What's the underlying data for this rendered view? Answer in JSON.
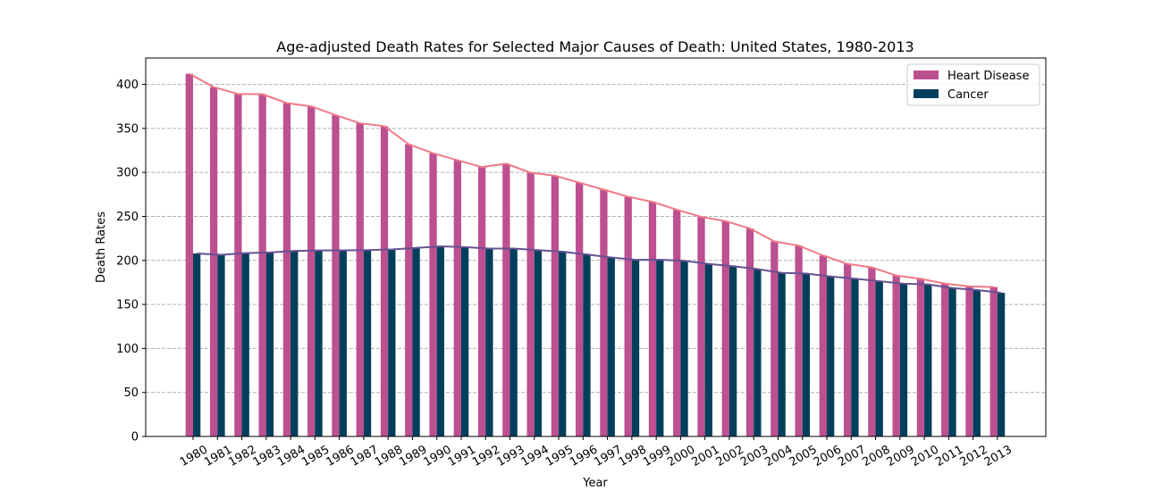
{
  "chart_data": {
    "type": "bar",
    "title": "Age-adjusted Death Rates for Selected Major Causes of Death: United States, 1980-2013",
    "xlabel": "Year",
    "ylabel": "Death Rates",
    "ylim": [
      0,
      430
    ],
    "yticks": [
      0,
      50,
      100,
      150,
      200,
      250,
      300,
      350,
      400
    ],
    "grid": "y-dashed",
    "legend_position": "top-right",
    "categories": [
      "1980",
      "1981",
      "1982",
      "1983",
      "1984",
      "1985",
      "1986",
      "1987",
      "1988",
      "1989",
      "1990",
      "1991",
      "1992",
      "1993",
      "1994",
      "1995",
      "1996",
      "1997",
      "1998",
      "1999",
      "2000",
      "2001",
      "2002",
      "2003",
      "2004",
      "2005",
      "2006",
      "2007",
      "2008",
      "2009",
      "2010",
      "2011",
      "2012",
      "2013"
    ],
    "series": [
      {
        "name": "Heart Disease",
        "color": "#bc5090",
        "line_color": "#ef7a85",
        "values": [
          412.1,
          397.0,
          389.0,
          388.9,
          378.8,
          375.0,
          365.1,
          355.9,
          352.5,
          332.0,
          321.8,
          313.8,
          306.1,
          309.9,
          299.7,
          296.3,
          288.3,
          280.4,
          272.4,
          266.5,
          257.6,
          249.5,
          244.6,
          236.3,
          221.6,
          216.8,
          205.5,
          196.1,
          192.1,
          182.8,
          179.1,
          173.7,
          170.5,
          169.8
        ]
      },
      {
        "name": "Cancer",
        "color": "#003f5c",
        "line_color": "#665191",
        "values": [
          207.9,
          206.4,
          208.3,
          209.1,
          210.8,
          211.3,
          211.5,
          211.7,
          212.5,
          214.2,
          216.0,
          215.1,
          213.5,
          213.5,
          211.7,
          209.9,
          206.7,
          203.4,
          200.7,
          200.8,
          199.6,
          196.0,
          193.5,
          190.1,
          185.8,
          185.1,
          181.8,
          179.3,
          176.4,
          173.5,
          172.8,
          168.6,
          166.5,
          163.2
        ]
      }
    ]
  }
}
